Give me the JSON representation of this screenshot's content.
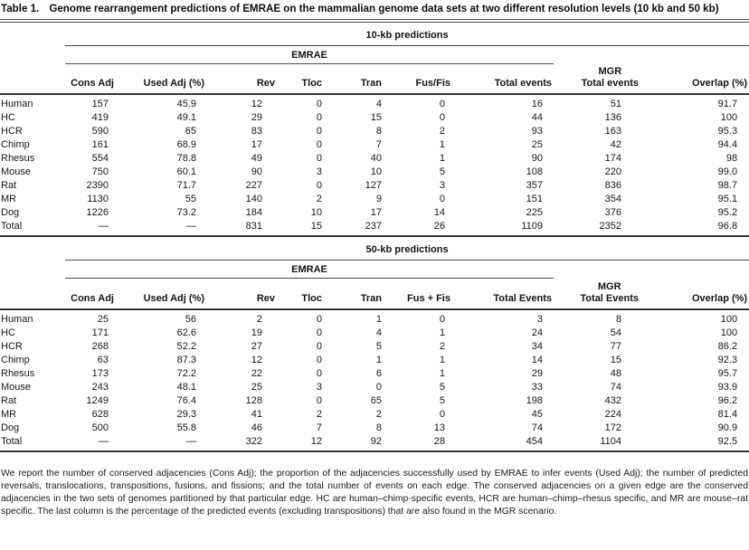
{
  "title": {
    "label": "Table 1.",
    "text": "Genome rearrangement predictions of EMRAE on the mammalian genome data sets at two different resolution levels (10 kb and 50 kb)"
  },
  "table": {
    "sections": [
      {
        "id": "10kb",
        "section_title": "10-kb predictions",
        "group_header": "EMRAE",
        "columns": [
          "Cons Adj",
          "Used Adj (%)",
          "Rev",
          "Tloc",
          "Tran",
          "Fus/Fis",
          "Total events",
          [
            "MGR",
            "Total events"
          ],
          "Overlap (%)"
        ],
        "rows": [
          {
            "label": "Human",
            "values": [
              "157",
              "45.9",
              "12",
              "0",
              "4",
              "0",
              "16",
              "51",
              "91.7"
            ]
          },
          {
            "label": "HC",
            "values": [
              "419",
              "49.1",
              "29",
              "0",
              "15",
              "0",
              "44",
              "136",
              "100"
            ]
          },
          {
            "label": "HCR",
            "values": [
              "590",
              "65",
              "83",
              "0",
              "8",
              "2",
              "93",
              "163",
              "95.3"
            ]
          },
          {
            "label": "Chimp",
            "values": [
              "161",
              "68.9",
              "17",
              "0",
              "7",
              "1",
              "25",
              "42",
              "94.4"
            ]
          },
          {
            "label": "Rhesus",
            "values": [
              "554",
              "78.8",
              "49",
              "0",
              "40",
              "1",
              "90",
              "174",
              "98"
            ]
          },
          {
            "label": "Mouse",
            "values": [
              "750",
              "60.1",
              "90",
              "3",
              "10",
              "5",
              "108",
              "220",
              "99.0"
            ]
          },
          {
            "label": "Rat",
            "values": [
              "2390",
              "71.7",
              "227",
              "0",
              "127",
              "3",
              "357",
              "836",
              "98.7"
            ]
          },
          {
            "label": "MR",
            "values": [
              "1130",
              "55",
              "140",
              "2",
              "9",
              "0",
              "151",
              "354",
              "95.1"
            ]
          },
          {
            "label": "Dog",
            "values": [
              "1226",
              "73.2",
              "184",
              "10",
              "17",
              "14",
              "225",
              "376",
              "95.2"
            ]
          },
          {
            "label": "Total",
            "values": [
              "—",
              "—",
              "831",
              "15",
              "237",
              "26",
              "1109",
              "2352",
              "96.8"
            ]
          }
        ]
      },
      {
        "id": "50kb",
        "section_title": "50-kb predictions",
        "group_header": "EMRAE",
        "columns": [
          "Cons Adj",
          "Used Adj (%)",
          "Rev",
          "Tloc",
          "Tran",
          "Fus + Fis",
          "Total Events",
          [
            "MGR",
            "Total Events"
          ],
          "Overlap (%)"
        ],
        "rows": [
          {
            "label": "Human",
            "values": [
              "25",
              "56",
              "2",
              "0",
              "1",
              "0",
              "3",
              "8",
              "100"
            ]
          },
          {
            "label": "HC",
            "values": [
              "171",
              "62.6",
              "19",
              "0",
              "4",
              "1",
              "24",
              "54",
              "100"
            ]
          },
          {
            "label": "HCR",
            "values": [
              "268",
              "52.2",
              "27",
              "0",
              "5",
              "2",
              "34",
              "77",
              "86.2"
            ]
          },
          {
            "label": "Chimp",
            "values": [
              "63",
              "87.3",
              "12",
              "0",
              "1",
              "1",
              "14",
              "15",
              "92.3"
            ]
          },
          {
            "label": "Rhesus",
            "values": [
              "173",
              "72.2",
              "22",
              "0",
              "6",
              "1",
              "29",
              "48",
              "95.7"
            ]
          },
          {
            "label": "Mouse",
            "values": [
              "243",
              "48.1",
              "25",
              "3",
              "0",
              "5",
              "33",
              "74",
              "93.9"
            ]
          },
          {
            "label": "Rat",
            "values": [
              "1249",
              "76.4",
              "128",
              "0",
              "65",
              "5",
              "198",
              "432",
              "96.2"
            ]
          },
          {
            "label": "MR",
            "values": [
              "628",
              "29.3",
              "41",
              "2",
              "2",
              "0",
              "45",
              "224",
              "81.4"
            ]
          },
          {
            "label": "Dog",
            "values": [
              "500",
              "55.8",
              "46",
              "7",
              "8",
              "13",
              "74",
              "172",
              "90.9"
            ]
          },
          {
            "label": "Total",
            "values": [
              "—",
              "—",
              "322",
              "12",
              "92",
              "28",
              "454",
              "1104",
              "92.5"
            ]
          }
        ]
      }
    ]
  },
  "footnote": "We report the number of conserved adjacencies (Cons Adj); the proportion of the adjacencies successfully used by EMRAE to infer events (Used Adj); the number of predicted reversals, translocations, transpositions, fusions, and fissions; and the total number of events on each edge. The conserved adjacencies on a given edge are the conserved adjacencies in the two sets of genomes partitioned by that particular edge. HC are human–chimp-specific events, HCR are human–chimp–rhesus specific, and MR are mouse–rat specific. The last column is the percentage of the predicted events (excluding transpositions) that are also found in the MGR scenario."
}
